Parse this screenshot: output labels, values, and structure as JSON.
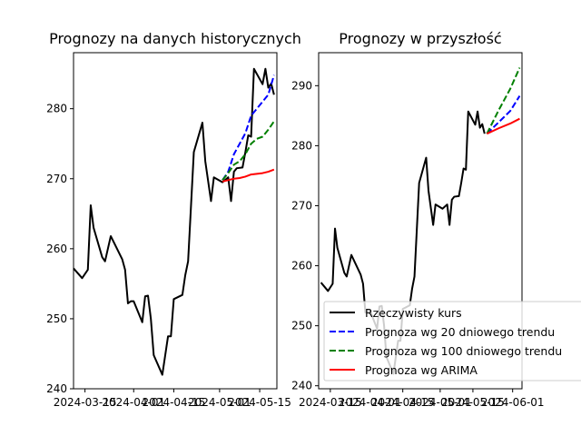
{
  "chart_data": [
    {
      "type": "line",
      "title": "Prognozy na danych historycznych",
      "xlabel": "",
      "ylabel": "",
      "xlim": [
        "2024-03-11",
        "2024-05-21"
      ],
      "ylim": [
        240,
        288
      ],
      "yticks": [
        240,
        250,
        260,
        270,
        280
      ],
      "xticks": [
        "2024-03-15",
        "2024-04-01",
        "2024-04-15",
        "2024-05-01",
        "2024-05-15"
      ],
      "grid": false,
      "series": [
        {
          "name": "Rzeczywisty kurs",
          "color": "#000000",
          "dash": "solid",
          "points": [
            [
              "2024-03-11",
              257.2
            ],
            [
              "2024-03-14",
              255.8
            ],
            [
              "2024-03-16",
              257.0
            ],
            [
              "2024-03-17",
              266.2
            ],
            [
              "2024-03-18",
              263.0
            ],
            [
              "2024-03-21",
              258.8
            ],
            [
              "2024-03-22",
              258.2
            ],
            [
              "2024-03-24",
              261.8
            ],
            [
              "2024-03-28",
              258.5
            ],
            [
              "2024-03-29",
              257.0
            ],
            [
              "2024-03-30",
              252.2
            ],
            [
              "2024-03-31",
              252.5
            ],
            [
              "2024-04-01",
              252.5
            ],
            [
              "2024-04-04",
              249.5
            ],
            [
              "2024-04-05",
              253.2
            ],
            [
              "2024-04-06",
              253.3
            ],
            [
              "2024-04-07",
              250.0
            ],
            [
              "2024-04-08",
              244.8
            ],
            [
              "2024-04-11",
              242.0
            ],
            [
              "2024-04-13",
              247.5
            ],
            [
              "2024-04-14",
              247.5
            ],
            [
              "2024-04-15",
              252.8
            ],
            [
              "2024-04-18",
              253.4
            ],
            [
              "2024-04-19",
              256.2
            ],
            [
              "2024-04-20",
              258.2
            ],
            [
              "2024-04-22",
              273.8
            ],
            [
              "2024-04-25",
              278.0
            ],
            [
              "2024-04-26",
              272.5
            ],
            [
              "2024-04-28",
              266.8
            ],
            [
              "2024-04-29",
              270.2
            ],
            [
              "2024-05-02",
              269.5
            ],
            [
              "2024-05-04",
              270.2
            ],
            [
              "2024-05-05",
              266.8
            ],
            [
              "2024-05-06",
              271.0
            ],
            [
              "2024-05-07",
              271.5
            ],
            [
              "2024-05-09",
              271.6
            ],
            [
              "2024-05-10",
              273.8
            ],
            [
              "2024-05-11",
              276.2
            ],
            [
              "2024-05-12",
              276.0
            ],
            [
              "2024-05-13",
              285.7
            ],
            [
              "2024-05-16",
              283.5
            ],
            [
              "2024-05-17",
              285.7
            ],
            [
              "2024-05-18",
              283.0
            ],
            [
              "2024-05-19",
              283.6
            ],
            [
              "2024-05-20",
              282.0
            ]
          ]
        },
        {
          "name": "Prognoza wg 20 dniowego trendu",
          "color": "#0000ff",
          "dash": "dashed",
          "points": [
            [
              "2024-05-02",
              269.8
            ],
            [
              "2024-05-04",
              271.0
            ],
            [
              "2024-05-06",
              273.5
            ],
            [
              "2024-05-08",
              275.0
            ],
            [
              "2024-05-10",
              276.5
            ],
            [
              "2024-05-12",
              279.0
            ],
            [
              "2024-05-14",
              280.0
            ],
            [
              "2024-05-16",
              281.0
            ],
            [
              "2024-05-18",
              282.0
            ],
            [
              "2024-05-20",
              284.8
            ]
          ]
        },
        {
          "name": "Prognoza wg 100 dniowego trendu",
          "color": "#008000",
          "dash": "dashed",
          "points": [
            [
              "2024-05-02",
              269.8
            ],
            [
              "2024-05-04",
              270.8
            ],
            [
              "2024-05-06",
              272.0
            ],
            [
              "2024-05-08",
              272.5
            ],
            [
              "2024-05-10",
              273.5
            ],
            [
              "2024-05-12",
              275.0
            ],
            [
              "2024-05-14",
              275.7
            ],
            [
              "2024-05-16",
              276.0
            ],
            [
              "2024-05-18",
              277.0
            ],
            [
              "2024-05-20",
              278.2
            ]
          ]
        },
        {
          "name": "Prognoza wg ARIMA",
          "color": "#ff0000",
          "dash": "solid",
          "points": [
            [
              "2024-05-02",
              269.6
            ],
            [
              "2024-05-04",
              269.8
            ],
            [
              "2024-05-06",
              270.0
            ],
            [
              "2024-05-08",
              270.1
            ],
            [
              "2024-05-10",
              270.3
            ],
            [
              "2024-05-12",
              270.6
            ],
            [
              "2024-05-14",
              270.7
            ],
            [
              "2024-05-16",
              270.8
            ],
            [
              "2024-05-18",
              271.0
            ],
            [
              "2024-05-20",
              271.3
            ]
          ]
        }
      ]
    },
    {
      "type": "line",
      "title": "Prognozy w przyszłość",
      "xlabel": "",
      "ylabel": "",
      "xlim": [
        "2024-03-10",
        "2024-06-05"
      ],
      "ylim": [
        239.5,
        295.5
      ],
      "yticks": [
        240,
        250,
        260,
        270,
        280,
        290
      ],
      "xticks": [
        "2024-03-15",
        "2024-04-01",
        "2024-04-15",
        "2024-05-01",
        "2024-05-15",
        "2024-06-01"
      ],
      "grid": false,
      "legend": {
        "placement": "lower-right",
        "entries": [
          "Rzeczywisty kurs",
          "Prognoza wg 20 dniowego trendu",
          "Prognoza wg 100 dniowego trendu",
          "Prognoza wg ARIMA"
        ]
      },
      "series": [
        {
          "name": "Rzeczywisty kurs",
          "color": "#000000",
          "dash": "solid",
          "points": [
            [
              "2024-03-11",
              257.2
            ],
            [
              "2024-03-14",
              255.8
            ],
            [
              "2024-03-16",
              257.0
            ],
            [
              "2024-03-17",
              266.2
            ],
            [
              "2024-03-18",
              263.0
            ],
            [
              "2024-03-21",
              258.8
            ],
            [
              "2024-03-22",
              258.2
            ],
            [
              "2024-03-24",
              261.8
            ],
            [
              "2024-03-28",
              258.5
            ],
            [
              "2024-03-29",
              257.0
            ],
            [
              "2024-03-30",
              252.2
            ],
            [
              "2024-03-31",
              252.5
            ],
            [
              "2024-04-01",
              252.5
            ],
            [
              "2024-04-04",
              249.5
            ],
            [
              "2024-04-05",
              253.2
            ],
            [
              "2024-04-06",
              253.3
            ],
            [
              "2024-04-07",
              250.0
            ],
            [
              "2024-04-08",
              244.8
            ],
            [
              "2024-04-11",
              242.0
            ],
            [
              "2024-04-13",
              247.5
            ],
            [
              "2024-04-14",
              247.5
            ],
            [
              "2024-04-15",
              252.8
            ],
            [
              "2024-04-18",
              253.4
            ],
            [
              "2024-04-19",
              256.2
            ],
            [
              "2024-04-20",
              258.2
            ],
            [
              "2024-04-22",
              273.8
            ],
            [
              "2024-04-25",
              278.0
            ],
            [
              "2024-04-26",
              272.5
            ],
            [
              "2024-04-28",
              266.8
            ],
            [
              "2024-04-29",
              270.2
            ],
            [
              "2024-05-02",
              269.5
            ],
            [
              "2024-05-04",
              270.2
            ],
            [
              "2024-05-05",
              266.8
            ],
            [
              "2024-05-06",
              271.0
            ],
            [
              "2024-05-07",
              271.5
            ],
            [
              "2024-05-09",
              271.6
            ],
            [
              "2024-05-10",
              273.8
            ],
            [
              "2024-05-11",
              276.2
            ],
            [
              "2024-05-12",
              276.0
            ],
            [
              "2024-05-13",
              285.7
            ],
            [
              "2024-05-16",
              283.5
            ],
            [
              "2024-05-17",
              285.7
            ],
            [
              "2024-05-18",
              283.0
            ],
            [
              "2024-05-19",
              283.6
            ],
            [
              "2024-05-20",
              282.0
            ]
          ]
        },
        {
          "name": "Prognoza wg 20 dniowego trendu",
          "color": "#0000ff",
          "dash": "dashed",
          "points": [
            [
              "2024-05-21",
              282.0
            ],
            [
              "2024-05-26",
              283.9
            ],
            [
              "2024-05-31",
              285.8
            ],
            [
              "2024-06-04",
              288.3
            ]
          ]
        },
        {
          "name": "Prognoza wg 100 dniowego trendu",
          "color": "#008000",
          "dash": "dashed",
          "points": [
            [
              "2024-05-21",
              282.0
            ],
            [
              "2024-05-26",
              285.9
            ],
            [
              "2024-05-31",
              289.5
            ],
            [
              "2024-06-04",
              293.0
            ]
          ]
        },
        {
          "name": "Prognoza wg ARIMA",
          "color": "#ff0000",
          "dash": "solid",
          "points": [
            [
              "2024-05-21",
              282.0
            ],
            [
              "2024-05-26",
              282.9
            ],
            [
              "2024-05-31",
              283.7
            ],
            [
              "2024-06-04",
              284.5
            ]
          ]
        }
      ]
    }
  ]
}
